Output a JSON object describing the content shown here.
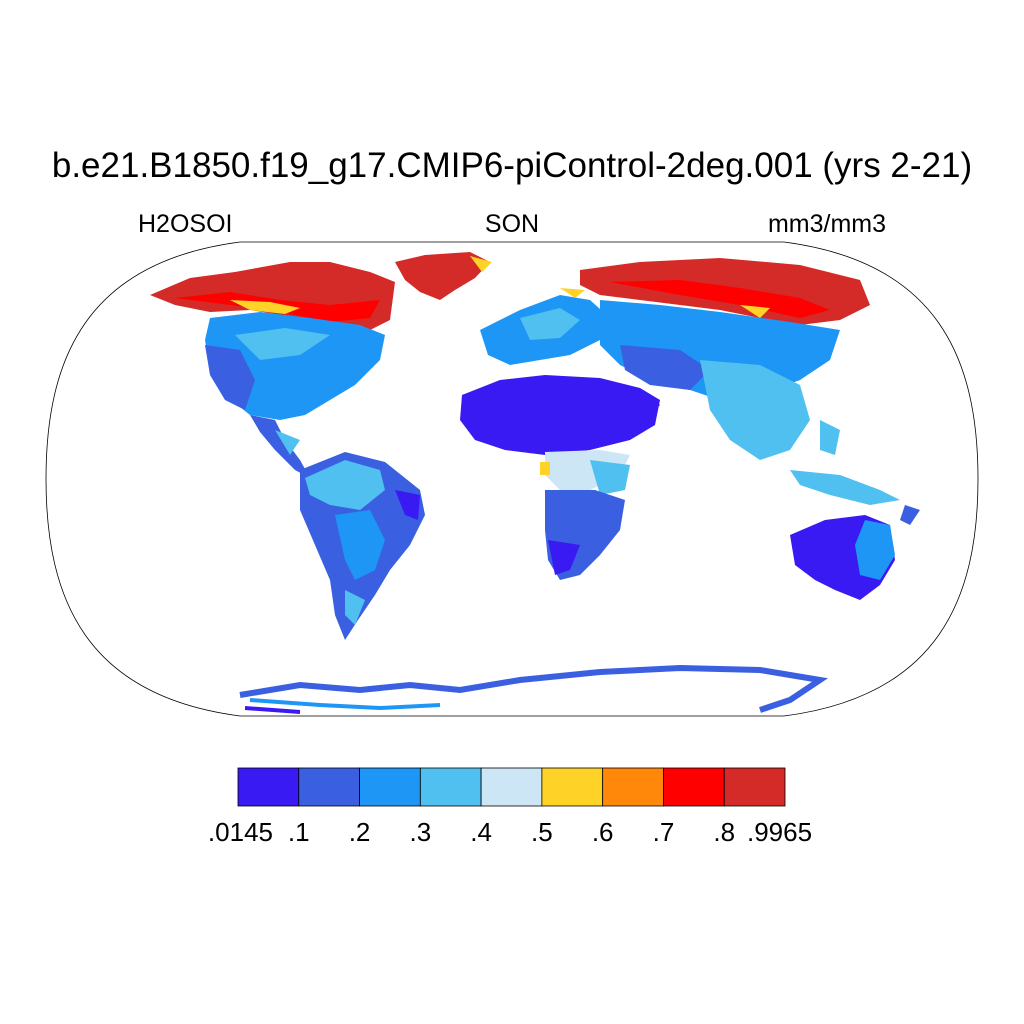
{
  "title": "b.e21.B1850.f19_g17.CMIP6-piControl-2deg.001 (yrs 2-21)",
  "subtitle_left": "H2OSOI",
  "subtitle_center": "SON",
  "subtitle_right": "mm3/mm3",
  "colors": {
    "outline": "#000000",
    "background": "#ffffff"
  },
  "colorbar": {
    "colors": [
      "#3a1af2",
      "#3a5fe0",
      "#1e96f5",
      "#4fc0f0",
      "#cce6f6",
      "#ffd227",
      "#ff870a",
      "#ff0000",
      "#d42a28"
    ],
    "labels": [
      ".0145",
      ".1",
      ".2",
      ".3",
      ".4",
      ".5",
      ".6",
      ".7",
      ".8",
      ".9965"
    ]
  }
}
